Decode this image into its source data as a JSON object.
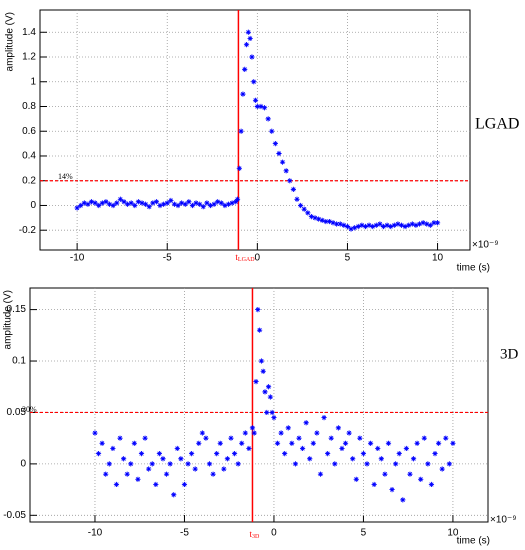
{
  "chart_data": [
    {
      "type": "scatter",
      "annotation": "LGAD",
      "threshold_label": "14%",
      "marker_label": "t",
      "marker_sub": "LGAD",
      "xlabel": "time (s)",
      "xscale_label": "×10⁻⁹",
      "ylabel": "amplitude (V)",
      "xlim": [
        -12.06,
        11.8
      ],
      "ylim": [
        -0.36,
        1.58
      ],
      "xticks": [
        -10,
        -5,
        0,
        5,
        10
      ],
      "yticks": [
        -0.2,
        0,
        0.2,
        0.4,
        0.6,
        0.8,
        1,
        1.2,
        1.4
      ],
      "grid": true,
      "threshold": 0.2,
      "marker_time": -1.05,
      "line_color": "#ff0000",
      "x": [
        -10,
        -9.8,
        -9.6,
        -9.4,
        -9.2,
        -9,
        -8.8,
        -8.6,
        -8.4,
        -8.2,
        -8,
        -7.8,
        -7.6,
        -7.4,
        -7.2,
        -7,
        -6.8,
        -6.6,
        -6.4,
        -6.2,
        -6,
        -5.8,
        -5.6,
        -5.4,
        -5.2,
        -5,
        -4.8,
        -4.6,
        -4.4,
        -4.2,
        -4,
        -3.8,
        -3.6,
        -3.4,
        -3.2,
        -3,
        -2.8,
        -2.6,
        -2.4,
        -2.2,
        -2,
        -1.8,
        -1.6,
        -1.4,
        -1.2,
        -1.1,
        -1,
        -0.9,
        -0.8,
        -0.7,
        -0.6,
        -0.5,
        -0.4,
        -0.3,
        -0.2,
        -0.1,
        0,
        0.2,
        0.4,
        0.6,
        0.8,
        1,
        1.2,
        1.4,
        1.6,
        1.8,
        2,
        2.2,
        2.4,
        2.6,
        2.8,
        3,
        3.2,
        3.4,
        3.6,
        3.8,
        4,
        4.2,
        4.4,
        4.6,
        4.8,
        5,
        5.2,
        5.4,
        5.6,
        5.8,
        6,
        6.2,
        6.4,
        6.6,
        6.8,
        7,
        7.2,
        7.4,
        7.6,
        7.8,
        8,
        8.2,
        8.4,
        8.6,
        8.8,
        9,
        9.2,
        9.4,
        9.6,
        9.8,
        10
      ],
      "series": [
        {
          "color": "#0000ff",
          "values": [
            -0.02,
            0,
            0.02,
            0.01,
            0.03,
            0.02,
            0,
            0.02,
            0.03,
            0.01,
            0,
            0.02,
            0.05,
            0.03,
            0.01,
            0.02,
            0,
            0.03,
            0.02,
            0.01,
            -0.01,
            0.02,
            0.03,
            0,
            0.01,
            0.02,
            0.04,
            0.01,
            0,
            0.02,
            0.01,
            0.03,
            0,
            0.02,
            0.01,
            -0.01,
            0.02,
            0,
            0.01,
            0.03,
            0.02,
            0,
            0.01,
            0.02,
            0.03,
            0.05,
            0.3,
            0.6,
            0.9,
            1.1,
            1.3,
            1.4,
            1.35,
            1.2,
            1,
            0.85,
            0.8,
            0.8,
            0.79,
            0.7,
            0.6,
            0.5,
            0.42,
            0.35,
            0.28,
            0.2,
            0.13,
            0.05,
            0,
            -0.03,
            -0.06,
            -0.09,
            -0.1,
            -0.11,
            -0.12,
            -0.13,
            -0.13,
            -0.14,
            -0.15,
            -0.15,
            -0.16,
            -0.17,
            -0.19,
            -0.18,
            -0.17,
            -0.16,
            -0.17,
            -0.16,
            -0.17,
            -0.16,
            -0.15,
            -0.17,
            -0.16,
            -0.17,
            -0.16,
            -0.15,
            -0.16,
            -0.17,
            -0.16,
            -0.15,
            -0.16,
            -0.15,
            -0.14,
            -0.15,
            -0.16,
            -0.14,
            -0.14
          ]
        }
      ]
    },
    {
      "type": "scatter",
      "annotation": "3D",
      "threshold_label": "30%",
      "marker_label": "t",
      "marker_sub": "3D",
      "xlabel": "time (s)",
      "xscale_label": "×10⁻⁹",
      "ylabel": "amplitude (V)",
      "xlim": [
        -13.63,
        11.96
      ],
      "ylim": [
        -0.0565,
        0.171
      ],
      "xticks": [
        -10,
        -5,
        0,
        5,
        10
      ],
      "yticks": [
        -0.05,
        0,
        0.05,
        0.1,
        0.15
      ],
      "grid": true,
      "threshold": 0.05,
      "marker_time": -1.2,
      "line_color": "#ff0000",
      "x": [
        -10,
        -9.8,
        -9.6,
        -9.4,
        -9.2,
        -9,
        -8.8,
        -8.6,
        -8.4,
        -8.2,
        -8,
        -7.8,
        -7.6,
        -7.4,
        -7.2,
        -7,
        -6.8,
        -6.6,
        -6.4,
        -6.2,
        -6,
        -5.8,
        -5.6,
        -5.4,
        -5.2,
        -5,
        -4.8,
        -4.6,
        -4.4,
        -4.2,
        -4,
        -3.8,
        -3.6,
        -3.4,
        -3.2,
        -3,
        -2.8,
        -2.6,
        -2.4,
        -2.2,
        -2,
        -1.8,
        -1.6,
        -1.4,
        -1.2,
        -1.1,
        -1,
        -0.9,
        -0.8,
        -0.7,
        -0.6,
        -0.5,
        -0.4,
        -0.3,
        -0.2,
        -0.1,
        0,
        0.2,
        0.4,
        0.6,
        0.8,
        1,
        1.2,
        1.4,
        1.6,
        1.8,
        2,
        2.2,
        2.4,
        2.6,
        2.8,
        3,
        3.2,
        3.4,
        3.6,
        3.8,
        4,
        4.2,
        4.4,
        4.6,
        4.8,
        5,
        5.2,
        5.4,
        5.6,
        5.8,
        6,
        6.2,
        6.4,
        6.6,
        6.8,
        7,
        7.2,
        7.4,
        7.6,
        7.8,
        8,
        8.2,
        8.4,
        8.6,
        8.8,
        9,
        9.2,
        9.4,
        9.6,
        9.8,
        10
      ],
      "series": [
        {
          "color": "#0000ff",
          "values": [
            0.03,
            0.01,
            0.02,
            -0.01,
            0,
            0.015,
            -0.02,
            0.025,
            0.005,
            -0.01,
            0,
            0.02,
            -0.015,
            0.01,
            0.025,
            -0.005,
            0,
            -0.02,
            0.01,
            0.005,
            -0.01,
            0,
            -0.03,
            0.015,
            0.005,
            -0.02,
            0,
            0.01,
            -0.005,
            0.02,
            0.03,
            0.025,
            0,
            -0.01,
            0.01,
            0.02,
            -0.005,
            0.005,
            0.025,
            0.01,
            0,
            0.02,
            0.03,
            0.015,
            0.035,
            0.03,
            0.08,
            0.15,
            0.13,
            0.1,
            0.09,
            0.07,
            0.05,
            0.075,
            0.065,
            0.05,
            0.045,
            0.02,
            0.03,
            0.01,
            0.035,
            0.02,
            0,
            0.025,
            0.015,
            0.04,
            0.005,
            0.02,
            0.03,
            -0.01,
            0.045,
            0.01,
            0.025,
            0,
            0.035,
            0.015,
            0.02,
            0.03,
            0.005,
            -0.015,
            0.025,
            0.01,
            0,
            0.02,
            -0.02,
            0.015,
            0.005,
            -0.01,
            0.02,
            -0.025,
            0,
            0.01,
            -0.035,
            0.015,
            -0.01,
            0.005,
            0.02,
            -0.015,
            0.025,
            0,
            -0.02,
            0.01,
            0.02,
            -0.005,
            0.025,
            0,
            0.02
          ]
        }
      ]
    }
  ]
}
